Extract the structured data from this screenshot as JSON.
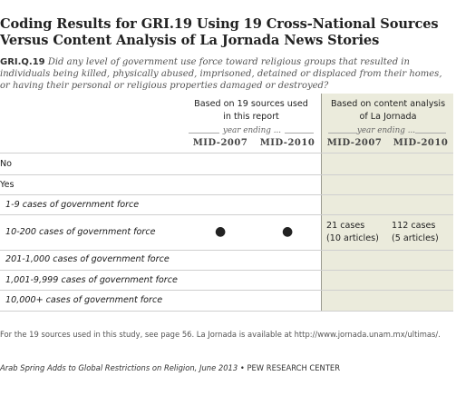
{
  "title": "Coding Results for GRI.19 Using 19 Cross-National Sources Versus Content Analysis of La Jornada News Stories",
  "question": {
    "code": "GRI.Q.19",
    "text": "Did any level of government use force toward religious groups that resulted in individuals being killed, physically abused, imprisoned, detained or displaced from their homes, or having their personal or religious properties damaged or destroyed?"
  },
  "header": {
    "group1_line1": "Based on 19 sources used",
    "group1_line2": "in this report",
    "group2_line1": "Based on content analysis",
    "group2_line2": "of La Jornada",
    "year_ending": "year ending ...",
    "col1": "MID-2007",
    "col2": "MID-2010",
    "col3": "MID-2007",
    "col4": "MID-2010"
  },
  "rows": {
    "r0": {
      "label": "No"
    },
    "r1": {
      "label": "Yes"
    },
    "r2": {
      "label": "1-9 cases of government force"
    },
    "r3": {
      "label": "10-200 cases of government force",
      "c1": "●",
      "c2": "●",
      "c3_line1": "21 cases",
      "c3_line2": "(10 articles)",
      "c4_line1": "112 cases",
      "c4_line2": "(5 articles)"
    },
    "r4": {
      "label": "201-1,000 cases of government force"
    },
    "r5": {
      "label": "1,001-9,999 cases of government force"
    },
    "r6": {
      "label": "10,000+ cases of government force"
    }
  },
  "note": "For the 19 sources used in this study, see page 56. La Jornada is available at http://www.jornada.unam.mx/ultimas/.",
  "source": {
    "report": "Arab Spring Adds to Global Restrictions on Religion, June 2013",
    "separator": " • ",
    "org": "PEW RESEARCH CENTER"
  },
  "colors": {
    "shade": "#ebebdc"
  }
}
